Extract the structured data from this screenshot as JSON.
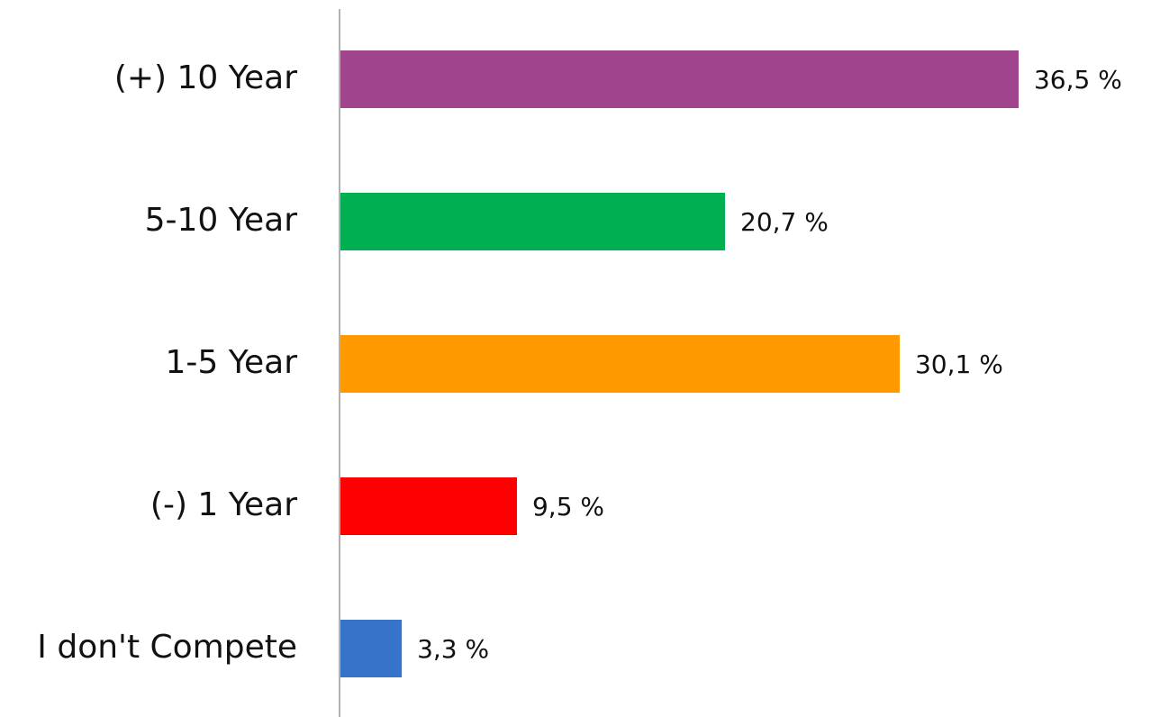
{
  "chart_data": {
    "type": "bar",
    "orientation": "horizontal",
    "categories": [
      "(+) 10 Year",
      "5-10 Year",
      "1-5 Year",
      "(-) 1 Year",
      "I don't Compete"
    ],
    "values": [
      36.5,
      20.7,
      30.1,
      9.5,
      3.3
    ],
    "value_labels": [
      "36,5 %",
      "20,7 %",
      "30,1 %",
      "9,5 %",
      "3,3 %"
    ],
    "colors": [
      "#a0448e",
      "#00b050",
      "#ff9900",
      "#ff0000",
      "#3574c8"
    ]
  }
}
